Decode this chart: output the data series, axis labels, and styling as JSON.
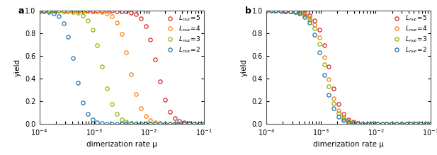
{
  "colors": {
    "L5": "#d62728",
    "L4": "#ff7f0e",
    "L3": "#8db600",
    "L2": "#1f77b4"
  },
  "xlabel": "dimerization rate μ",
  "ylabel": "yield",
  "xlim_log": [
    -4,
    -1
  ],
  "ylim": [
    0,
    1
  ],
  "panel_a": {
    "midpoints_log10": [
      -1.85,
      -2.35,
      -2.85,
      -3.35
    ],
    "steepnesses": [
      9,
      9,
      9,
      10
    ]
  },
  "panel_b": {
    "midpoints_log10": [
      -2.85,
      -2.9,
      -2.93,
      -2.97
    ],
    "steepnesses": [
      9,
      9,
      9,
      9
    ]
  },
  "n_points": 35,
  "marker_size": 3.8,
  "marker_lw": 0.9
}
